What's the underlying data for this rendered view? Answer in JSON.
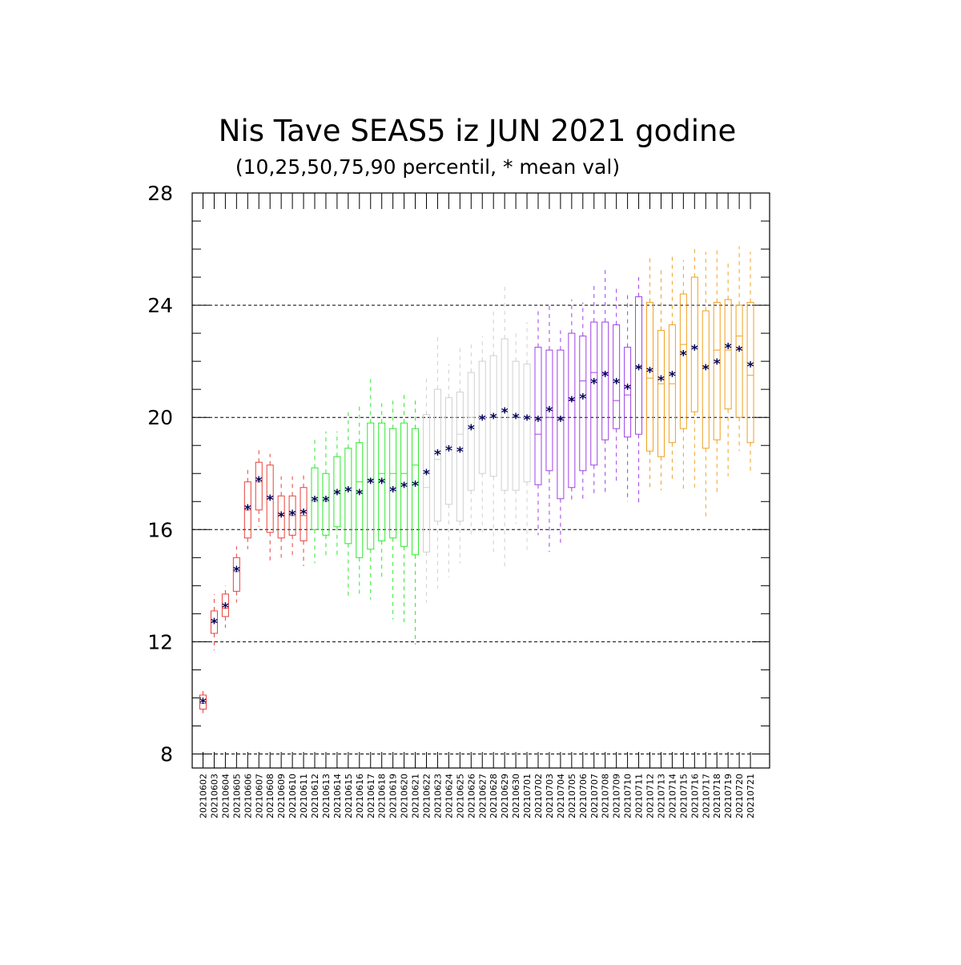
{
  "chart_data": {
    "type": "box",
    "title": "Nis Tave SEAS5 iz JUN 2021 godine",
    "subtitle": "(10,25,50,75,90 percentil, * mean val)",
    "ylim": [
      7.5,
      28
    ],
    "yticks": [
      "8",
      "12",
      "16",
      "20",
      "24",
      "28"
    ],
    "grid": "horizontal dashed at labeled ticks",
    "colors": {
      "june_early": "#e8413a",
      "june_mid": "#2ee82e",
      "late_june": "#d0d0d0",
      "early_july": "#a040e8",
      "mid_july": "#f0a020",
      "mean_marker": "#00005a"
    },
    "categories": [
      "20210602",
      "20210603",
      "20210604",
      "20210605",
      "20210606",
      "20210607",
      "20210608",
      "20210609",
      "20210610",
      "20210611",
      "20210612",
      "20210613",
      "20210614",
      "20210615",
      "20210616",
      "20210617",
      "20210618",
      "20210619",
      "20210620",
      "20210621",
      "20210622",
      "20210623",
      "20210624",
      "20210625",
      "20210626",
      "20210627",
      "20210628",
      "20210629",
      "20210630",
      "20210701",
      "20210702",
      "20210703",
      "20210704",
      "20210705",
      "20210706",
      "20210707",
      "20210708",
      "20210709",
      "20210710",
      "20210711",
      "20210712",
      "20210713",
      "20210714",
      "20210715",
      "20210716",
      "20210717",
      "20210718",
      "20210719",
      "20210720",
      "20210721"
    ],
    "series": [
      {
        "color_key": "june_early",
        "p10": [
          9.4,
          11.7,
          12.5,
          13.4,
          15.3,
          16.1,
          14.8,
          15.0,
          15.1,
          14.7
        ],
        "p25": [
          9.6,
          12.3,
          12.9,
          13.8,
          15.7,
          16.7,
          15.9,
          15.7,
          15.8,
          15.6
        ],
        "p50": [
          9.8,
          12.7,
          13.2,
          14.5,
          16.7,
          17.7,
          17.1,
          16.5,
          16.5,
          16.5
        ],
        "p75": [
          10.1,
          13.1,
          13.7,
          15.0,
          17.7,
          18.4,
          18.3,
          17.2,
          17.2,
          17.5
        ],
        "p90": [
          10.3,
          13.7,
          14.0,
          15.4,
          18.2,
          18.9,
          18.7,
          17.9,
          17.9,
          18.0
        ],
        "mean": [
          9.85,
          12.7,
          13.25,
          14.55,
          16.75,
          17.75,
          17.1,
          16.5,
          16.55,
          16.6
        ]
      },
      {
        "color_key": "june_mid",
        "p10": [
          14.8,
          15.0,
          15.0,
          13.5,
          13.6,
          13.5,
          14.3,
          12.8,
          12.7,
          11.9
        ],
        "p25": [
          16.0,
          15.8,
          16.1,
          15.5,
          15.0,
          15.3,
          15.6,
          15.7,
          15.4,
          15.1
        ],
        "p50": [
          17.0,
          17.0,
          17.3,
          17.4,
          17.7,
          17.8,
          18.0,
          18.0,
          18.0,
          18.3
        ],
        "p75": [
          18.2,
          18.0,
          18.6,
          18.9,
          19.1,
          19.8,
          19.8,
          19.6,
          19.8,
          19.6
        ],
        "p90": [
          19.3,
          19.5,
          19.5,
          20.3,
          20.5,
          21.4,
          20.5,
          20.6,
          20.9,
          20.6
        ],
        "mean": [
          17.05,
          17.05,
          17.3,
          17.4,
          17.3,
          17.7,
          17.7,
          17.4,
          17.55,
          17.6
        ]
      },
      {
        "color_key": "late_june",
        "p10": [
          13.4,
          13.9,
          14.3,
          14.8,
          15.7,
          15.9,
          15.2,
          14.6,
          16.2,
          15.2
        ],
        "p25": [
          15.2,
          16.3,
          16.9,
          16.3,
          17.4,
          18.0,
          17.9,
          17.4,
          17.4,
          17.7
        ],
        "p50": [
          17.5,
          18.5,
          19.0,
          19.4,
          20.0,
          20.0,
          20.0,
          20.2,
          20.0,
          20.0
        ],
        "p75": [
          20.1,
          21.0,
          20.7,
          20.9,
          21.6,
          22.0,
          22.2,
          22.8,
          22.0,
          21.9
        ],
        "p90": [
          21.5,
          23.0,
          21.9,
          22.6,
          22.7,
          22.9,
          23.9,
          24.7,
          23.0,
          23.4
        ],
        "mean": [
          18.0,
          18.7,
          18.85,
          18.8,
          19.6,
          19.95,
          20.0,
          20.2,
          20.0,
          19.95
        ]
      },
      {
        "color_key": "early_july",
        "p10": [
          15.8,
          15.2,
          15.5,
          17.0,
          17.0,
          17.2,
          17.3,
          17.6,
          17.0,
          16.9
        ],
        "p25": [
          17.6,
          18.1,
          17.1,
          17.5,
          18.1,
          18.3,
          19.2,
          19.6,
          19.3,
          19.4
        ],
        "p50": [
          19.4,
          20.0,
          20.0,
          20.6,
          21.3,
          21.6,
          21.6,
          20.6,
          20.8,
          21.8
        ],
        "p75": [
          22.5,
          22.4,
          22.4,
          23.0,
          22.9,
          23.4,
          23.4,
          23.3,
          22.5,
          24.3
        ],
        "p90": [
          23.8,
          24.0,
          23.1,
          24.2,
          24.1,
          24.8,
          25.3,
          24.6,
          24.4,
          25.0
        ],
        "mean": [
          19.9,
          20.25,
          19.9,
          20.6,
          20.7,
          21.25,
          21.5,
          21.25,
          21.05,
          21.75
        ]
      },
      {
        "color_key": "mid_july",
        "p10": [
          17.5,
          17.4,
          17.8,
          17.4,
          17.5,
          16.4,
          17.2,
          17.9,
          18.8,
          18.0
        ],
        "p25": [
          18.8,
          18.6,
          19.1,
          19.6,
          20.2,
          18.9,
          19.2,
          20.3,
          20.0,
          19.1
        ],
        "p50": [
          21.4,
          21.2,
          21.2,
          22.6,
          22.5,
          21.8,
          22.4,
          22.4,
          22.9,
          21.5
        ],
        "p75": [
          24.1,
          23.1,
          23.3,
          24.4,
          25.0,
          23.8,
          24.1,
          24.2,
          24.0,
          24.1
        ],
        "p90": [
          25.7,
          25.3,
          25.8,
          25.6,
          26.1,
          25.9,
          26.0,
          25.6,
          26.1,
          25.9
        ],
        "mean": [
          21.65,
          21.35,
          21.5,
          22.25,
          22.45,
          21.75,
          21.95,
          22.5,
          22.4,
          21.85
        ]
      }
    ]
  }
}
